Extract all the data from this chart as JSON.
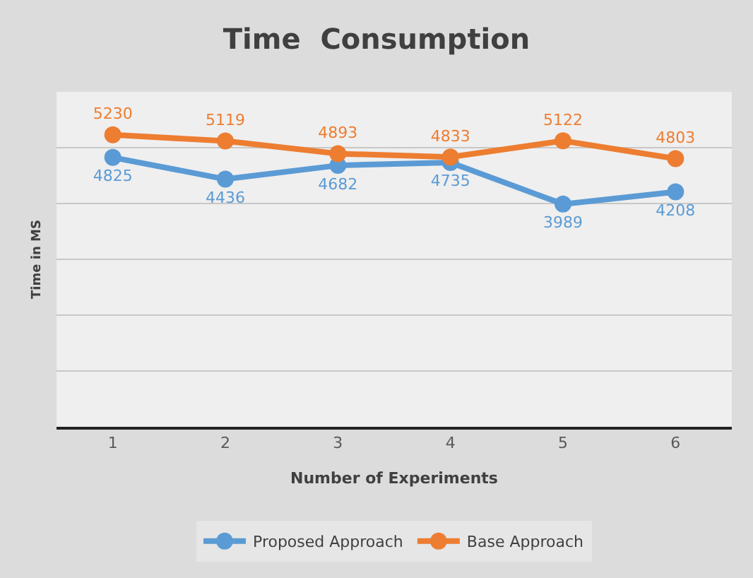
{
  "chart_data": {
    "type": "line",
    "title": "Time  Consumption",
    "xlabel": "Number of Experiments",
    "ylabel": "Time in MS",
    "categories": [
      "1",
      "2",
      "3",
      "4",
      "5",
      "6"
    ],
    "series": [
      {
        "name": "Proposed Approach",
        "color": "#5b9bd5",
        "values": [
          4825,
          4436,
          4682,
          4735,
          3989,
          4208
        ]
      },
      {
        "name": "Base Approach",
        "color": "#ed7d31",
        "values": [
          5230,
          5119,
          4893,
          4833,
          5122,
          4803
        ]
      }
    ],
    "ylim": [
      0,
      6000
    ],
    "yticks": [
      {
        "value": 0,
        "label": null
      },
      {
        "value": 1000,
        "label": null
      },
      {
        "value": 2000,
        "label": null
      },
      {
        "value": 3000,
        "label": null
      },
      {
        "value": 4000,
        "label": null
      },
      {
        "value": 5000,
        "label": null
      },
      {
        "value": 6000,
        "label": null
      }
    ],
    "tick_labels": "x",
    "grid": "y",
    "legend": "bottom",
    "marker": "circle",
    "line_style": "solid",
    "data_labels": true
  }
}
